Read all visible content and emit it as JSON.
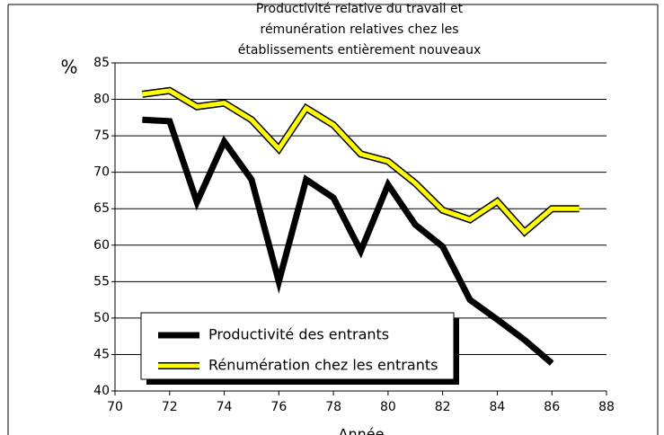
{
  "chart_data": {
    "type": "line",
    "title": [
      "Productivité relative du travail et",
      "rémunération  relatives chez les",
      "établissements entièrement nouveaux"
    ],
    "ylabel": "%",
    "xlabel": "Année",
    "x": [
      71,
      72,
      73,
      74,
      75,
      76,
      77,
      78,
      79,
      80,
      81,
      82,
      83,
      84,
      85,
      86,
      87
    ],
    "series": [
      {
        "name": "Productivité des entrants",
        "color": "#000000",
        "values": [
          77.2,
          77.0,
          65.9,
          74.2,
          69.0,
          55.0,
          69.0,
          66.5,
          59.2,
          68.3,
          62.8,
          59.8,
          52.5,
          49.8,
          47.0,
          43.8,
          null
        ]
      },
      {
        "name": "Rénumération chez les entrants",
        "color": "#ffff00",
        "values": [
          80.7,
          81.2,
          79.0,
          79.5,
          77.2,
          73.2,
          78.8,
          76.5,
          72.5,
          71.5,
          68.5,
          64.8,
          63.5,
          66.0,
          61.8,
          65.0,
          65.0
        ]
      }
    ],
    "xlim": [
      70,
      88
    ],
    "xticks": [
      70,
      72,
      74,
      76,
      78,
      80,
      82,
      84,
      86,
      88
    ],
    "ylim": [
      40,
      85
    ],
    "yticks": [
      40,
      45,
      50,
      55,
      60,
      65,
      70,
      75,
      80,
      85
    ],
    "grid": true
  }
}
